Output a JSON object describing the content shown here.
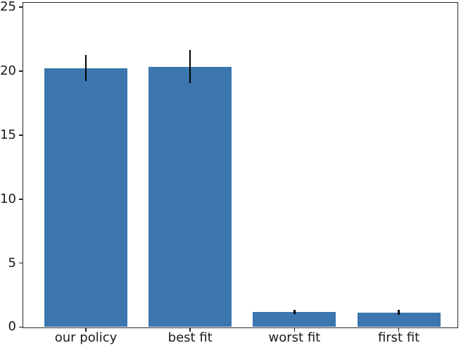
{
  "chart_data": {
    "type": "bar",
    "categories": [
      "our policy",
      "best fit",
      "worst fit",
      "first fit"
    ],
    "values": [
      20.25,
      20.35,
      1.2,
      1.15
    ],
    "errors": [
      1.0,
      1.3,
      0.17,
      0.17
    ],
    "title": "",
    "xlabel": "",
    "ylabel": "",
    "ylim": [
      0,
      25.4
    ],
    "yticks": [
      0,
      5,
      10,
      15,
      20,
      25
    ],
    "grid": false,
    "legend": "none",
    "bar_color": "#3b76af",
    "error_color": "#000000",
    "axis_color": "#262626",
    "text_color": "#1a1a1a",
    "background": "#ffffff"
  }
}
